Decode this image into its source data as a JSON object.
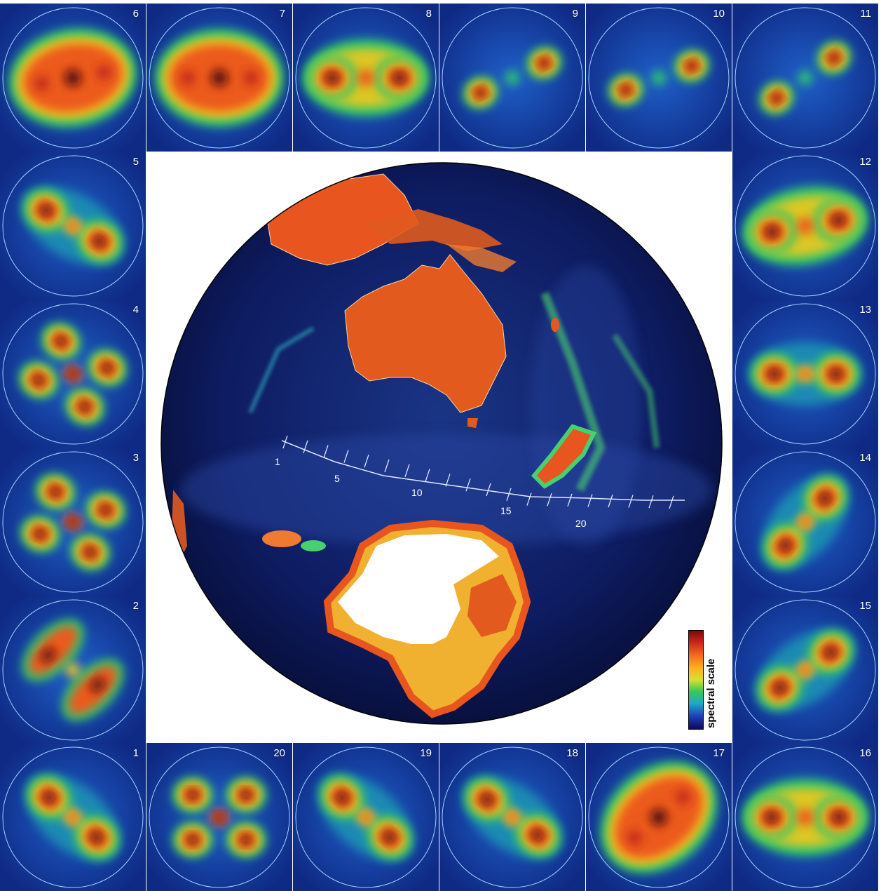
{
  "figure": {
    "tiles": [
      {
        "label": "6",
        "pattern": "diffuse",
        "angle": 10
      },
      {
        "label": "7",
        "pattern": "diffuse",
        "angle": 0
      },
      {
        "label": "8",
        "pattern": "pair-broad",
        "angle": 0
      },
      {
        "label": "9",
        "pattern": "pair-small",
        "angle": 25
      },
      {
        "label": "10",
        "pattern": "pair-small",
        "angle": 20
      },
      {
        "label": "11",
        "pattern": "pair-small",
        "angle": 35
      },
      {
        "label": "5",
        "pattern": "pair",
        "angle": -30
      },
      {
        "label": "12",
        "pattern": "pair-broad",
        "angle": 10
      },
      {
        "label": "4",
        "pattern": "quad",
        "angle": -30
      },
      {
        "label": "13",
        "pattern": "pair",
        "angle": 0
      },
      {
        "label": "3",
        "pattern": "quad",
        "angle": -20
      },
      {
        "label": "14",
        "pattern": "pair",
        "angle": 50
      },
      {
        "label": "2",
        "pattern": "crescent",
        "angle": -45
      },
      {
        "label": "15",
        "pattern": "pair",
        "angle": 35
      },
      {
        "label": "1",
        "pattern": "pair",
        "angle": -40
      },
      {
        "label": "20",
        "pattern": "quad",
        "angle": 0
      },
      {
        "label": "19",
        "pattern": "pair",
        "angle": -40
      },
      {
        "label": "18",
        "pattern": "pair",
        "angle": -35
      },
      {
        "label": "17",
        "pattern": "diffuse",
        "angle": 40
      },
      {
        "label": "16",
        "pattern": "pair-broad",
        "angle": 0
      }
    ],
    "track_labels": [
      "1",
      "5",
      "10",
      "15",
      "20"
    ],
    "legend": {
      "label": "spectral scale",
      "colors": [
        "#7a0a0a",
        "#c8281a",
        "#f36a1f",
        "#ffb01e",
        "#d6e030",
        "#38c85a",
        "#1fa8c8",
        "#2040b8",
        "#0a0a5a"
      ]
    },
    "colors": {
      "ocean": "#0c1550",
      "land": "#e8551e",
      "ice": "#ffffff",
      "tile_ring": "#9fd3ff"
    }
  }
}
